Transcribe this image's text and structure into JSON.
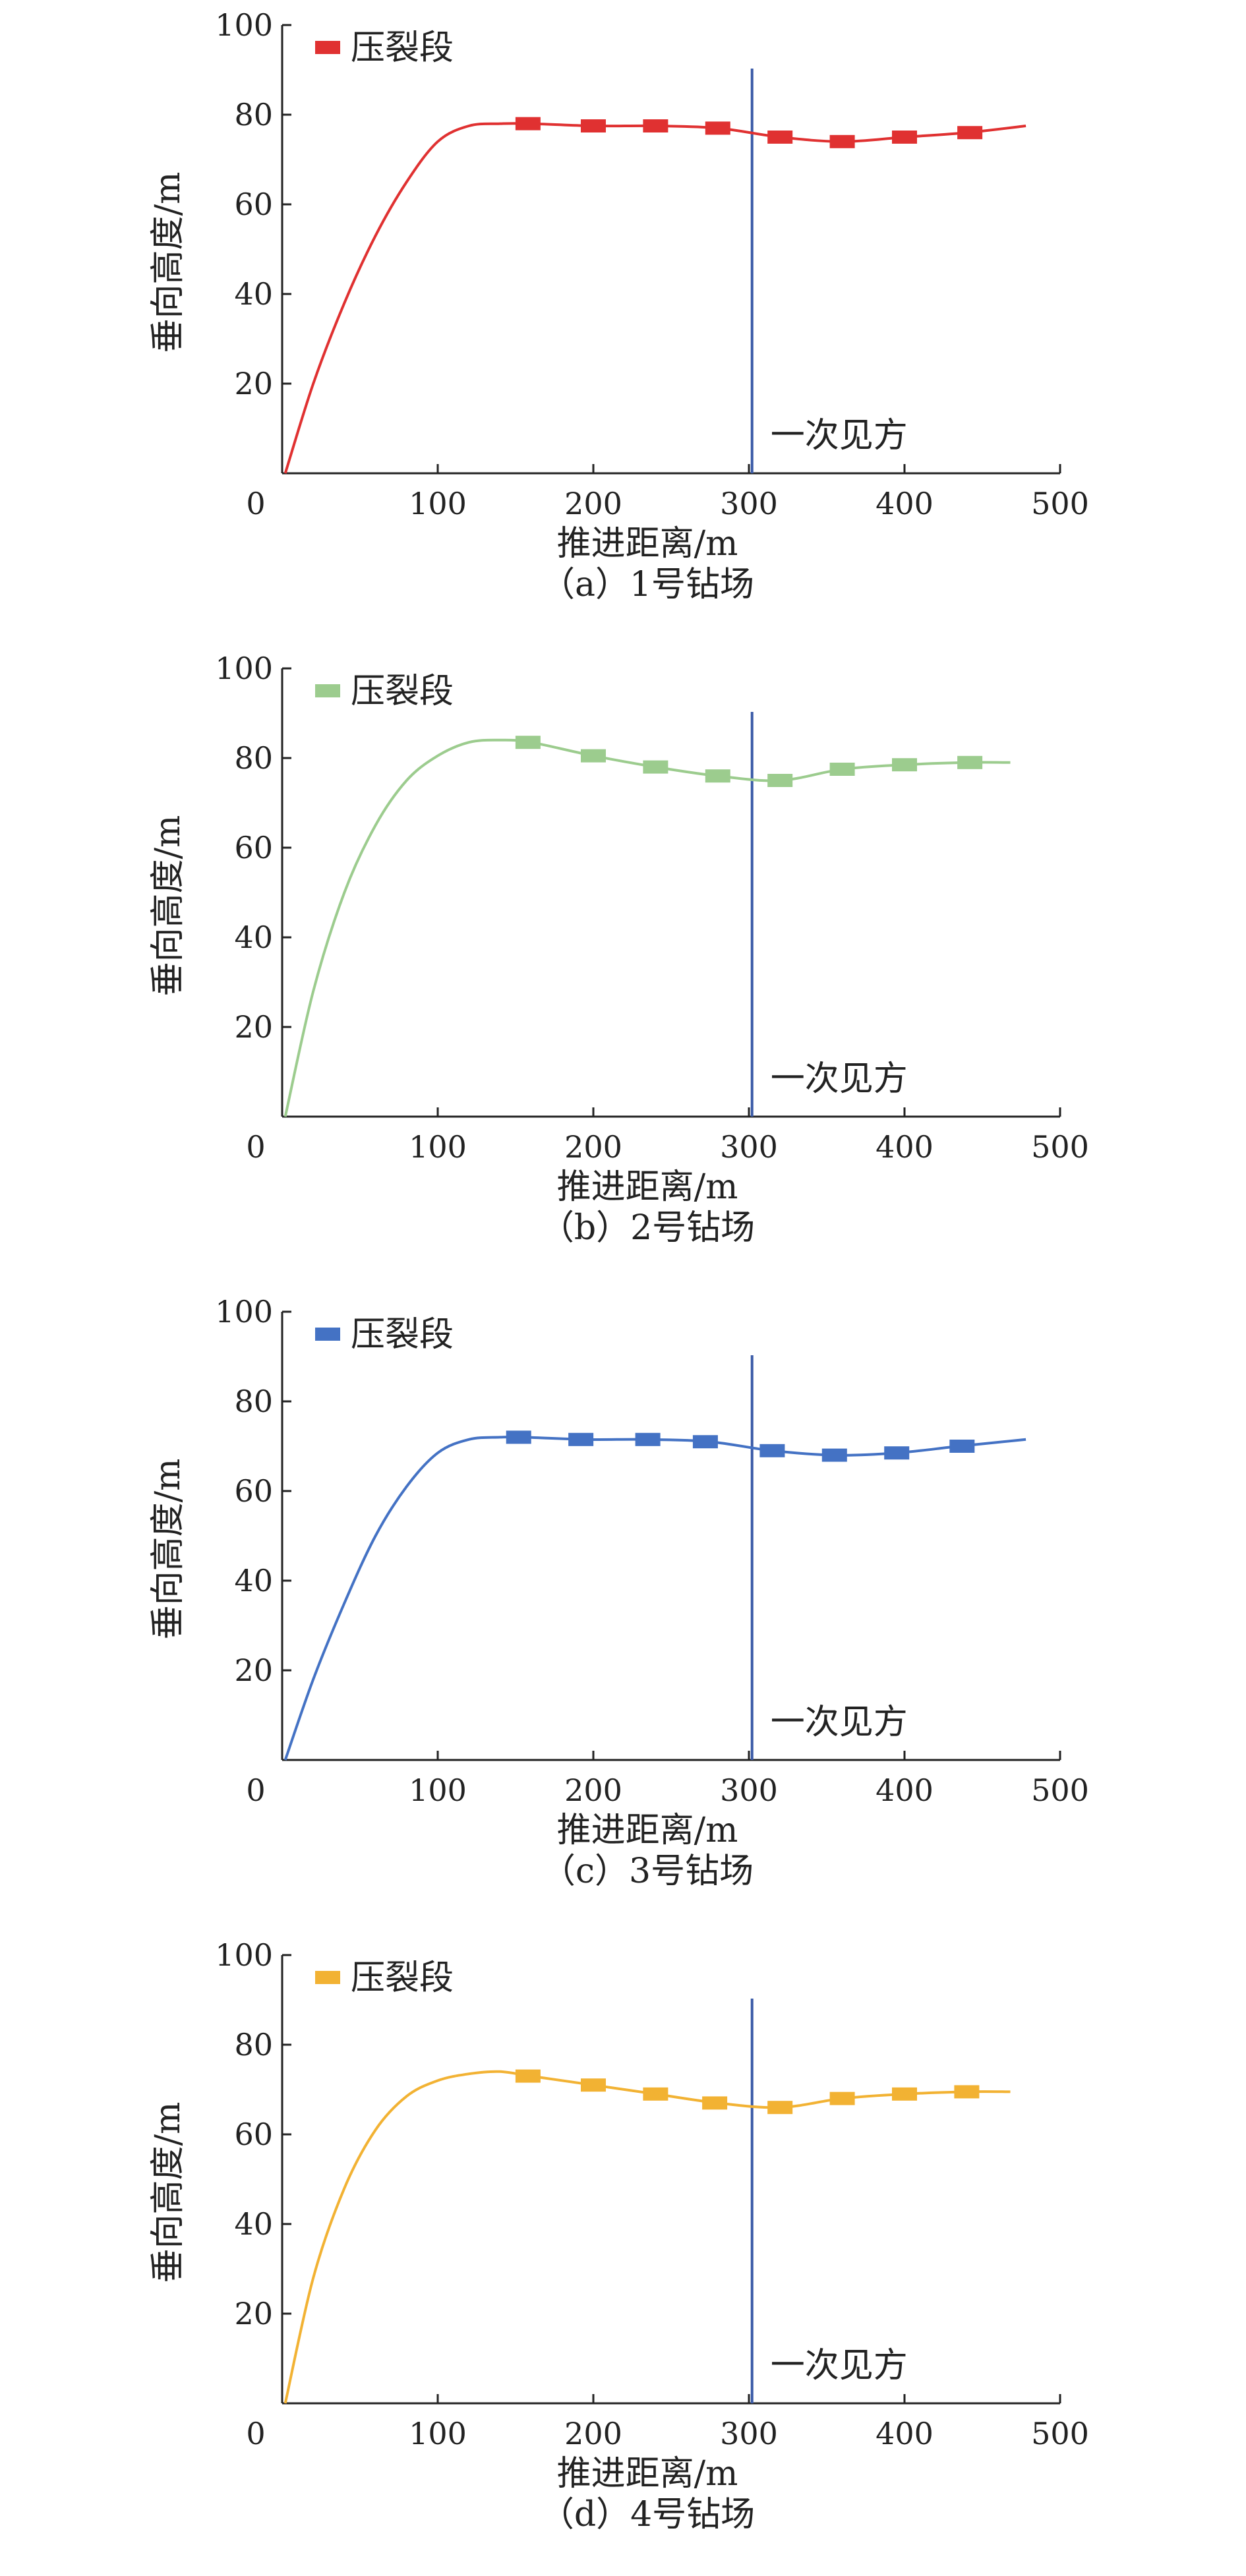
{
  "chart_data": [
    {
      "type": "line",
      "caption": "（a）1号钻场",
      "xlabel": "推进距离/m",
      "ylabel": "垂向高度/m",
      "xlim": [
        0,
        500
      ],
      "ylim": [
        0,
        100
      ],
      "xticks": [
        "0",
        "100",
        "200",
        "300",
        "400",
        "500"
      ],
      "yticks": [
        "20",
        "40",
        "60",
        "80",
        "100"
      ],
      "grid": false,
      "legend": {
        "label": "压裂段",
        "position": "top-left"
      },
      "annotation": {
        "text": "一次见方",
        "x": 302
      },
      "color": "#e03131",
      "series": [
        {
          "name": "压裂段",
          "x": [
            2,
            20,
            40,
            60,
            80,
            100,
            120,
            140,
            160,
            200,
            240,
            280,
            320,
            360,
            400,
            440,
            478
          ],
          "y": [
            0,
            20,
            38,
            53,
            65,
            74,
            77.5,
            78,
            78,
            77.5,
            77.5,
            77,
            75,
            74,
            75,
            76,
            77.5
          ],
          "markers_x": [
            158,
            200,
            240,
            280,
            320,
            360,
            400,
            442
          ],
          "markers_y": [
            78,
            77.5,
            77.5,
            77,
            75,
            74,
            75,
            76
          ]
        }
      ]
    },
    {
      "type": "line",
      "caption": "（b）2号钻场",
      "xlabel": "推进距离/m",
      "ylabel": "垂向高度/m",
      "xlim": [
        0,
        500
      ],
      "ylim": [
        0,
        100
      ],
      "xticks": [
        "0",
        "100",
        "200",
        "300",
        "400",
        "500"
      ],
      "yticks": [
        "20",
        "40",
        "60",
        "80",
        "100"
      ],
      "grid": false,
      "legend": {
        "label": "压裂段",
        "position": "top-left"
      },
      "annotation": {
        "text": "一次见方",
        "x": 302
      },
      "color": "#9ccc8e",
      "series": [
        {
          "name": "压裂段",
          "x": [
            2,
            20,
            40,
            60,
            80,
            100,
            120,
            140,
            160,
            200,
            240,
            280,
            320,
            360,
            400,
            440,
            468
          ],
          "y": [
            0,
            28,
            50,
            65,
            75,
            80.5,
            83.5,
            84,
            83.5,
            80.5,
            78,
            76,
            75,
            77.5,
            78.5,
            79,
            79
          ],
          "markers_x": [
            158,
            200,
            240,
            280,
            320,
            360,
            400,
            442
          ],
          "markers_y": [
            83.5,
            80.5,
            78,
            76,
            75,
            77.5,
            78.5,
            79
          ]
        }
      ]
    },
    {
      "type": "line",
      "caption": "（c）3号钻场",
      "xlabel": "推进距离/m",
      "ylabel": "垂向高度/m",
      "xlim": [
        0,
        500
      ],
      "ylim": [
        0,
        100
      ],
      "xticks": [
        "0",
        "100",
        "200",
        "300",
        "400",
        "500"
      ],
      "yticks": [
        "20",
        "40",
        "60",
        "80",
        "100"
      ],
      "grid": false,
      "legend": {
        "label": "压裂段",
        "position": "top-left"
      },
      "annotation": {
        "text": "一次见方",
        "x": 302
      },
      "color": "#4472c4",
      "series": [
        {
          "name": "压裂段",
          "x": [
            2,
            20,
            40,
            60,
            80,
            100,
            120,
            140,
            155,
            195,
            235,
            275,
            315,
            355,
            395,
            435,
            478
          ],
          "y": [
            0,
            18,
            35,
            50,
            61,
            68.5,
            71.5,
            72,
            72,
            71.5,
            71.5,
            71,
            69,
            68,
            68.5,
            70,
            71.5
          ],
          "markers_x": [
            152,
            192,
            235,
            272,
            315,
            355,
            395,
            437
          ],
          "markers_y": [
            72,
            71.5,
            71.5,
            71,
            69,
            68,
            68.5,
            70
          ]
        }
      ]
    },
    {
      "type": "line",
      "caption": "（d）4号钻场",
      "xlabel": "推进距离/m",
      "ylabel": "垂向高度/m",
      "xlim": [
        0,
        500
      ],
      "ylim": [
        0,
        100
      ],
      "xticks": [
        "0",
        "100",
        "200",
        "300",
        "400",
        "500"
      ],
      "yticks": [
        "20",
        "40",
        "60",
        "80",
        "100"
      ],
      "grid": false,
      "legend": {
        "label": "压裂段",
        "position": "top-left"
      },
      "annotation": {
        "text": "一次见方",
        "x": 302
      },
      "color": "#f2b233",
      "series": [
        {
          "name": "压裂段",
          "x": [
            2,
            20,
            40,
            60,
            80,
            100,
            120,
            140,
            160,
            200,
            240,
            280,
            320,
            360,
            400,
            440,
            468
          ],
          "y": [
            0,
            28,
            48,
            61,
            68.5,
            72,
            73.5,
            74,
            73,
            71,
            69,
            67,
            66,
            68,
            69,
            69.5,
            69.5
          ],
          "markers_x": [
            158,
            200,
            240,
            278,
            320,
            360,
            400,
            440
          ],
          "markers_y": [
            73,
            71,
            69,
            67,
            66,
            68,
            69,
            69.5
          ]
        }
      ]
    }
  ]
}
